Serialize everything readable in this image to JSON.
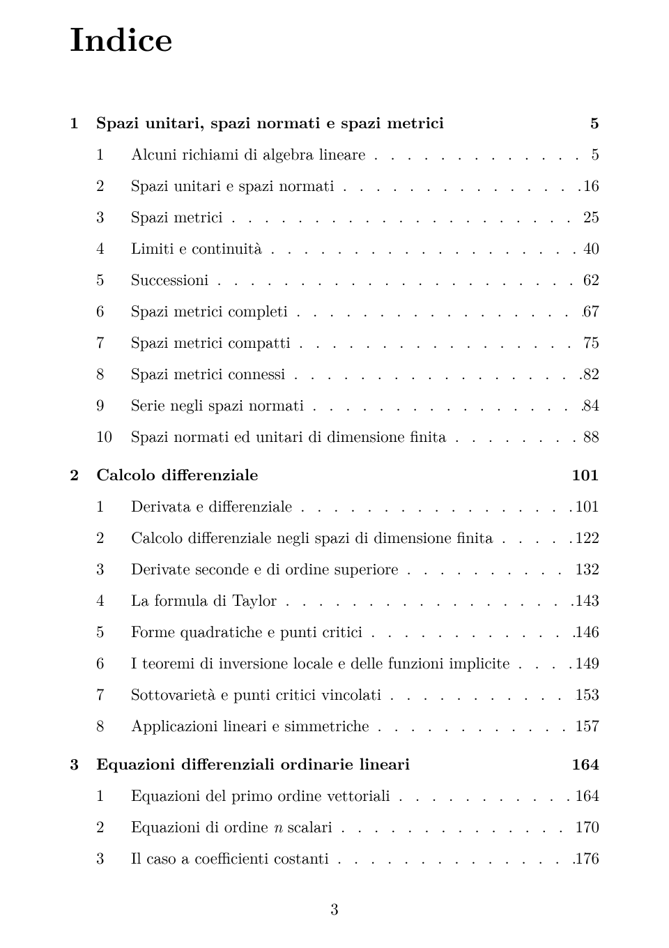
{
  "title": "Indice",
  "page_number": "3",
  "chapters": [
    {
      "num": "1",
      "title": "Spazi unitari, spazi normati e spazi metrici",
      "page": "5",
      "sections": [
        {
          "num": "1",
          "title": "Alcuni richiami di algebra lineare",
          "page": "5"
        },
        {
          "num": "2",
          "title": "Spazi unitari e spazi normati",
          "page": "16"
        },
        {
          "num": "3",
          "title": "Spazi metrici",
          "page": "25"
        },
        {
          "num": "4",
          "title": "Limiti e continuità",
          "page": "40"
        },
        {
          "num": "5",
          "title": "Successioni",
          "page": "62"
        },
        {
          "num": "6",
          "title": "Spazi metrici completi",
          "page": "67"
        },
        {
          "num": "7",
          "title": "Spazi metrici compatti",
          "page": "75"
        },
        {
          "num": "8",
          "title": "Spazi metrici connessi",
          "page": "82"
        },
        {
          "num": "9",
          "title": "Serie negli spazi normati",
          "page": "84"
        },
        {
          "num": "10",
          "title": "Spazi normati ed unitari di dimensione finita",
          "page": "88"
        }
      ]
    },
    {
      "num": "2",
      "title": "Calcolo differenziale",
      "page": "101",
      "sections": [
        {
          "num": "1",
          "title": "Derivata e differenziale",
          "page": "101"
        },
        {
          "num": "2",
          "title": "Calcolo differenziale negli spazi di dimensione finita",
          "page": "122"
        },
        {
          "num": "3",
          "title": "Derivate seconde e di ordine superiore",
          "page": "132"
        },
        {
          "num": "4",
          "title": "La formula di Taylor",
          "page": "143"
        },
        {
          "num": "5",
          "title": "Forme quadratiche e punti critici",
          "page": "146"
        },
        {
          "num": "6",
          "title": "I teoremi di inversione locale e delle funzioni implicite",
          "page": "149"
        },
        {
          "num": "7",
          "title": "Sottovarietà e punti critici vincolati",
          "page": "153"
        },
        {
          "num": "8",
          "title": "Applicazioni lineari e simmetriche",
          "page": "157"
        }
      ]
    },
    {
      "num": "3",
      "title": "Equazioni differenziali ordinarie lineari",
      "page": "164",
      "sections": [
        {
          "num": "1",
          "title": "Equazioni del primo ordine vettoriali",
          "page": "164"
        },
        {
          "num": "2",
          "title_html": "Equazioni di ordine <span class=\"italic\">n</span> scalari",
          "page": "170"
        },
        {
          "num": "3",
          "title": "Il caso a coefficienti costanti",
          "page": "176"
        }
      ]
    }
  ]
}
